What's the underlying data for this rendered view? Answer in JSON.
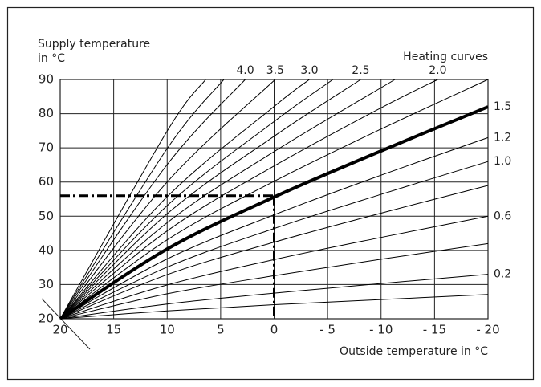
{
  "chart_data": {
    "type": "line",
    "ylabel": [
      "Supply temperature",
      "in °C"
    ],
    "xlabel": "Outside temperature in °C",
    "legend_title": "Heating curves",
    "color": "#000000",
    "grid": true,
    "xlim": [
      20,
      -20
    ],
    "ylim": [
      20,
      90
    ],
    "xticks": [
      20,
      15,
      10,
      5,
      0,
      {
        "value": -5,
        "label": "- 5"
      },
      {
        "value": -10,
        "label": "- 10"
      },
      {
        "value": -15,
        "label": "- 15"
      },
      {
        "value": -20,
        "label": "- 20"
      }
    ],
    "yticks": [
      20,
      30,
      40,
      50,
      60,
      70,
      80,
      90
    ],
    "series": [
      {
        "name": null,
        "width": 1,
        "x": [
          20,
          10,
          0,
          -10,
          -20
        ],
        "values": [
          20,
          22.3,
          24.1,
          25.6,
          27.1
        ]
      },
      {
        "name": "0.2",
        "width": 1,
        "x": [
          20,
          10,
          0,
          -10,
          -20
        ],
        "values": [
          20,
          24.3,
          27.5,
          30.3,
          33
        ]
      },
      {
        "name": null,
        "width": 1,
        "x": [
          20,
          10,
          0,
          -10,
          -20
        ],
        "values": [
          20,
          27.3,
          32.6,
          37.4,
          42
        ]
      },
      {
        "name": "0.6",
        "width": 1,
        "x": [
          20,
          10,
          0,
          -10,
          -20
        ],
        "values": [
          20,
          29.9,
          37.3,
          43.8,
          50
        ]
      },
      {
        "name": null,
        "width": 1,
        "x": [
          20,
          10,
          0,
          -10,
          -20
        ],
        "values": [
          20,
          32.9,
          42.4,
          50.9,
          59
        ]
      },
      {
        "name": "1.0",
        "width": 1,
        "x": [
          20,
          10,
          0,
          -10,
          -20
        ],
        "values": [
          20,
          35.1,
          46.4,
          56.4,
          66
        ]
      },
      {
        "name": "1.2",
        "width": 1,
        "x": [
          20,
          10,
          0,
          -10,
          -20
        ],
        "values": [
          20,
          37.5,
          50.4,
          62,
          73
        ]
      },
      {
        "name": "1.5",
        "width": 4,
        "x": [
          20,
          10,
          0,
          -10,
          -20
        ],
        "values": [
          20,
          40.4,
          55.6,
          69.1,
          82
        ]
      },
      {
        "name": null,
        "width": 1,
        "x": [
          20,
          10,
          0,
          -10,
          -20
        ],
        "values": [
          20,
          43.1,
          60.2,
          75.5,
          90
        ]
      },
      {
        "name": "2.0",
        "width": 1,
        "x": [
          20,
          10,
          0,
          -10,
          -15.3
        ],
        "values": [
          20,
          45.7,
          64.7,
          81.7,
          90
        ]
      },
      {
        "name": null,
        "width": 1,
        "x": [
          20,
          10,
          0,
          -11.3
        ],
        "values": [
          20,
          48.1,
          68.9,
          90
        ]
      },
      {
        "name": "2.5",
        "width": 1,
        "x": [
          20,
          10,
          0,
          -8.1
        ],
        "values": [
          20,
          50.7,
          73.4,
          90
        ]
      },
      {
        "name": null,
        "width": 1,
        "x": [
          20,
          10,
          0,
          -5.5
        ],
        "values": [
          20,
          53.1,
          77.7,
          90
        ]
      },
      {
        "name": "3.0",
        "width": 1,
        "x": [
          20,
          10,
          0,
          -3.3
        ],
        "values": [
          20,
          55.7,
          82.1,
          90
        ]
      },
      {
        "name": "3.5",
        "width": 1,
        "x": [
          20,
          10,
          -0.1
        ],
        "values": [
          20,
          60,
          90
        ]
      },
      {
        "name": "4.0",
        "width": 1,
        "x": [
          20,
          10,
          2.7
        ],
        "values": [
          20,
          65.1,
          90
        ]
      },
      {
        "name": null,
        "width": 1,
        "x": [
          20,
          10,
          4.7
        ],
        "values": [
          20,
          69.8,
          90
        ]
      },
      {
        "name": null,
        "width": 1,
        "x": [
          20,
          10,
          6.4
        ],
        "values": [
          20,
          74.9,
          90
        ]
      }
    ],
    "reference": {
      "x": 0,
      "y": 56
    }
  }
}
